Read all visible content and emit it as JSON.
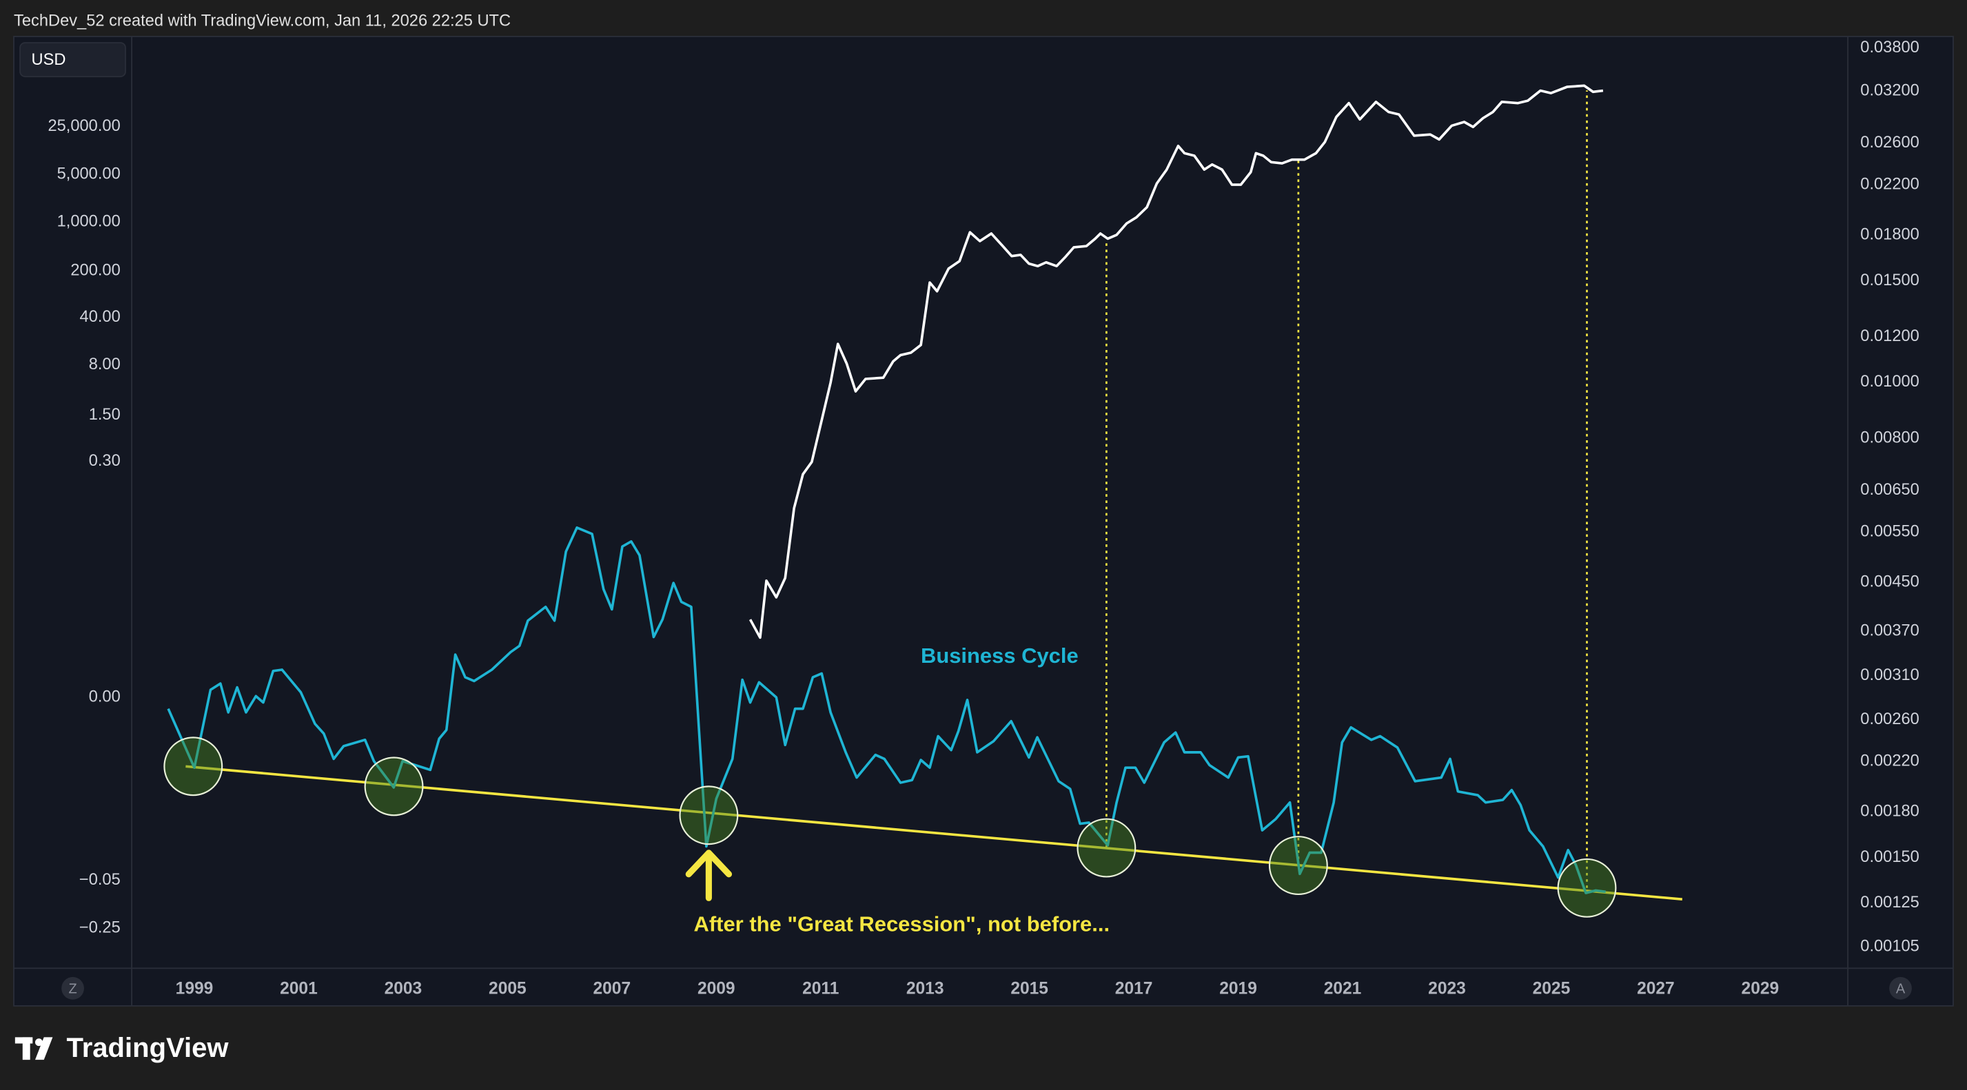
{
  "header": {
    "text": "TechDev_52 created with TradingView.com, Jan 11, 2026 22:25 UTC"
  },
  "currency": "USD",
  "buttons": [
    "Z",
    "A"
  ],
  "footer": {
    "logo": "TradingView"
  },
  "chart_data": {
    "type": "line",
    "annotations": [
      {
        "text": "Business Cycle"
      },
      {
        "text": "After the \"Great Recession\", not before..."
      }
    ],
    "xlim": [
      1997.8,
      2030.68
    ],
    "xticks": [
      1999,
      2001,
      2003,
      2005,
      2007,
      2009,
      2011,
      2013,
      2015,
      2017,
      2019,
      2021,
      2023,
      2025,
      2027,
      2029
    ],
    "yticks": [
      {
        "value": 25000,
        "label": "25,000.00"
      },
      {
        "value": 5000,
        "label": "5,000.00"
      },
      {
        "value": 1000,
        "label": "1,000.00"
      },
      {
        "value": 200,
        "label": "200.00"
      },
      {
        "value": 40,
        "label": "40.00"
      },
      {
        "value": 8,
        "label": "8.00"
      },
      {
        "value": 1.5,
        "label": "1.50"
      },
      {
        "value": 0.3,
        "label": "0.30"
      },
      {
        "value": 0,
        "label": "0.00"
      },
      {
        "value": -0.05,
        "label": "−0.05"
      },
      {
        "value": -0.25,
        "label": "−0.25"
      }
    ],
    "y2lim": [
      0.000964,
      0.0396
    ],
    "y2scale": "log",
    "y2ticks": [
      {
        "value": 0.038,
        "label": "0.03800"
      },
      {
        "value": 0.032,
        "label": "0.03200"
      },
      {
        "value": 0.026,
        "label": "0.02600"
      },
      {
        "value": 0.022,
        "label": "0.02200"
      },
      {
        "value": 0.018,
        "label": "0.01800"
      },
      {
        "value": 0.015,
        "label": "0.01500"
      },
      {
        "value": 0.012,
        "label": "0.01200"
      },
      {
        "value": 0.01,
        "label": "0.01000"
      },
      {
        "value": 0.008,
        "label": "0.00800"
      },
      {
        "value": 0.0065,
        "label": "0.00650"
      },
      {
        "value": 0.0055,
        "label": "0.00550"
      },
      {
        "value": 0.0045,
        "label": "0.00450"
      },
      {
        "value": 0.0037,
        "label": "0.00370"
      },
      {
        "value": 0.0031,
        "label": "0.00310"
      },
      {
        "value": 0.0026,
        "label": "0.00260"
      },
      {
        "value": 0.0022,
        "label": "0.00220"
      },
      {
        "value": 0.0018,
        "label": "0.00180"
      },
      {
        "value": 0.0015,
        "label": "0.00150"
      },
      {
        "value": 0.00125,
        "label": "0.00125"
      },
      {
        "value": 0.00105,
        "label": "0.00105"
      }
    ],
    "series": [
      {
        "name": "Business Cycle",
        "color": "#1fb5d4",
        "x": [
          1998.5,
          1999,
          1999.31,
          1999.5,
          1999.65,
          1999.82,
          1999.99,
          2000.18,
          2000.32,
          2000.51,
          2000.68,
          2001.04,
          2001.31,
          2001.48,
          2001.67,
          2001.86,
          2002.27,
          2002.44,
          2002.82,
          2002.99,
          2003.52,
          2003.69,
          2003.83,
          2004,
          2004.19,
          2004.36,
          2004.7,
          2005.06,
          2005.23,
          2005.39,
          2005.73,
          2005.9,
          2006.12,
          2006.33,
          2006.62,
          2006.84,
          2007,
          2007.2,
          2007.37,
          2007.53,
          2007.8,
          2007.97,
          2008.18,
          2008.33,
          2008.52,
          2008.81,
          2009,
          2009.31,
          2009.5,
          2009.65,
          2009.82,
          2010.15,
          2010.32,
          2010.51,
          2010.66,
          2010.85,
          2011.02,
          2011.19,
          2011.48,
          2011.69,
          2012.05,
          2012.22,
          2012.53,
          2012.75,
          2012.92,
          2013.09,
          2013.25,
          2013.5,
          2013.64,
          2013.81,
          2014,
          2014.31,
          2014.65,
          2014.99,
          2015.15,
          2015.56,
          2015.78,
          2015.97,
          2016.14,
          2016.5,
          2016.67,
          2016.84,
          2017.03,
          2017.2,
          2017.58,
          2017.8,
          2017.97,
          2018.28,
          2018.45,
          2018.81,
          2019,
          2019.19,
          2019.46,
          2019.72,
          2019.99,
          2020.18,
          2020.37,
          2020.59,
          2020.83,
          2020.99,
          2021.16,
          2021.55,
          2021.72,
          2022.05,
          2022.39,
          2022.89,
          2023.06,
          2023.21,
          2023.59,
          2023.74,
          2024.07,
          2024.24,
          2024.41,
          2024.58,
          2024.84,
          2025.13,
          2025.32,
          2025.47,
          2025.66,
          2025.85,
          2026.04
        ],
        "values": [
          -0.0031,
          -0.0192,
          0.0096,
          0.0176,
          -0.0041,
          0.0128,
          -0.0041,
          0.0016,
          -0.0014,
          0.0336,
          0.0352,
          0.0064,
          -0.0072,
          -0.0099,
          -0.0168,
          -0.0133,
          -0.0116,
          -0.0174,
          -0.0246,
          -0.0174,
          -0.0198,
          -0.0113,
          -0.0089,
          0.0544,
          0.0256,
          0.0208,
          0.0352,
          0.0576,
          0.0656,
          0.0976,
          0.1152,
          0.0976,
          0.1856,
          0.216,
          0.208,
          0.1376,
          0.112,
          0.192,
          0.1984,
          0.1808,
          0.0768,
          0.0992,
          0.1456,
          0.1216,
          0.1152,
          -0.0407,
          -0.0277,
          -0.0168,
          0.0224,
          -0.0014,
          0.0192,
          0,
          -0.013,
          -0.0031,
          -0.0031,
          0.0256,
          0.0304,
          -0.0041,
          -0.015,
          -0.0219,
          -0.0157,
          -0.0168,
          -0.0233,
          -0.0226,
          -0.0171,
          -0.0192,
          -0.0106,
          -0.0144,
          -0.0092,
          -0.0007,
          -0.015,
          -0.012,
          -0.0065,
          -0.0164,
          -0.0109,
          -0.0229,
          -0.025,
          -0.0345,
          -0.0342,
          -0.0404,
          -0.0287,
          -0.0192,
          -0.0192,
          -0.0233,
          -0.0123,
          -0.0096,
          -0.015,
          -0.015,
          -0.0185,
          -0.0219,
          -0.0164,
          -0.0161,
          -0.0363,
          -0.0332,
          -0.0287,
          -0.0482,
          -0.0424,
          -0.0424,
          -0.0287,
          -0.0123,
          -0.0082,
          -0.0116,
          -0.0106,
          -0.0137,
          -0.0229,
          -0.0219,
          -0.0168,
          -0.0257,
          -0.0267,
          -0.0287,
          -0.028,
          -0.0253,
          -0.0294,
          -0.0363,
          -0.0407,
          -0.0492,
          -0.0417,
          -0.0458,
          -0.1026,
          -0.0921,
          -0.0974
        ]
      },
      {
        "color": "#ffffff",
        "axis": "y2",
        "x": [
          2009.65,
          2009.84,
          2009.96,
          2010.15,
          2010.32,
          2010.49,
          2010.66,
          2010.83,
          2011.02,
          2011.19,
          2011.33,
          2011.5,
          2011.67,
          2011.86,
          2012.2,
          2012.39,
          2012.53,
          2012.73,
          2012.92,
          2013.09,
          2013.23,
          2013.45,
          2013.66,
          2013.86,
          2014.05,
          2014.27,
          2014.49,
          2014.66,
          2014.83,
          2014.99,
          2015.16,
          2015.32,
          2015.52,
          2015.68,
          2015.85,
          2016.09,
          2016.26,
          2016.36,
          2016.5,
          2016.67,
          2016.86,
          2017.05,
          2017.25,
          2017.44,
          2017.63,
          2017.85,
          2017.97,
          2018.16,
          2018.35,
          2018.5,
          2018.69,
          2018.88,
          2019.05,
          2019.24,
          2019.34,
          2019.48,
          2019.63,
          2019.84,
          2020.03,
          2020.27,
          2020.49,
          2020.66,
          2020.88,
          2021.12,
          2021.33,
          2021.64,
          2021.88,
          2022.08,
          2022.37,
          2022.68,
          2022.85,
          2023.09,
          2023.33,
          2023.5,
          2023.69,
          2023.88,
          2024.05,
          2024.36,
          2024.55,
          2024.79,
          2024.99,
          2025.3,
          2025.63,
          2025.8,
          2025.99
        ],
        "values": [
          0.00388,
          0.00361,
          0.00453,
          0.00424,
          0.00458,
          0.00605,
          0.00693,
          0.00728,
          0.0086,
          0.00999,
          0.01166,
          0.01077,
          0.00965,
          0.01014,
          0.01019,
          0.01088,
          0.01115,
          0.01126,
          0.01161,
          0.0149,
          0.01439,
          0.01575,
          0.01623,
          0.01821,
          0.01758,
          0.01812,
          0.01723,
          0.01656,
          0.01664,
          0.01607,
          0.01591,
          0.01615,
          0.01591,
          0.01647,
          0.01715,
          0.01723,
          0.01775,
          0.01812,
          0.01775,
          0.01802,
          0.01886,
          0.01933,
          0.02012,
          0.02213,
          0.02339,
          0.02571,
          0.02497,
          0.02472,
          0.02339,
          0.02387,
          0.02339,
          0.02202,
          0.02202,
          0.02315,
          0.02497,
          0.02472,
          0.0241,
          0.02398,
          0.02434,
          0.02434,
          0.02497,
          0.02611,
          0.02886,
          0.0305,
          0.02858,
          0.03065,
          0.02944,
          0.02915,
          0.02678,
          0.02691,
          0.02638,
          0.02787,
          0.02829,
          0.02773,
          0.02872,
          0.02944,
          0.03065,
          0.0305,
          0.0308,
          0.03206,
          0.03174,
          0.03254,
          0.0327,
          0.0319,
          0.03206
        ]
      }
    ]
  }
}
